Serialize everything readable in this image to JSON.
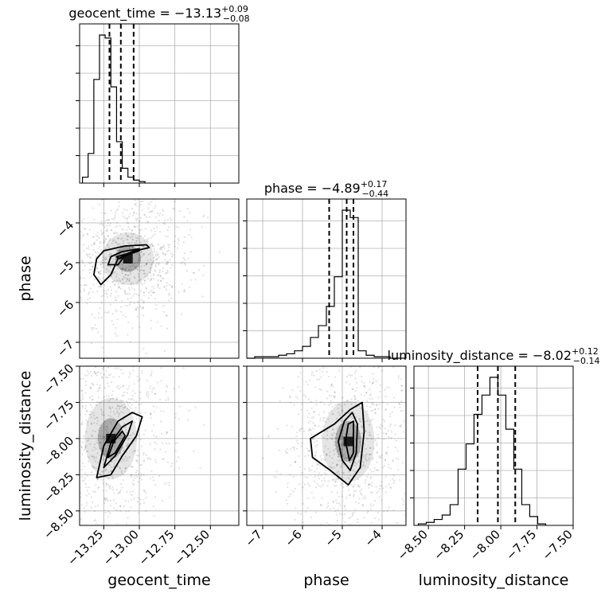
{
  "chart_data": {
    "type": "corner",
    "grid": true,
    "parameters": [
      {
        "name": "geocent_time",
        "median": -13.13,
        "plus": 0.09,
        "minus": 0.08,
        "range": [
          -13.42,
          -12.3
        ],
        "ticks": [
          -13.25,
          -13.0,
          -12.75,
          -12.5
        ],
        "tick_labels": [
          "−13.25",
          "−13.00",
          "−12.75",
          "−12.50"
        ],
        "title_prefix": "geocent_time = −13.13",
        "title_sup": "+0.09",
        "title_sub": "−0.08",
        "hist": {
          "edges_start": -13.4,
          "bin_width": 0.04,
          "counts": [
            0.04,
            0.2,
            0.7,
            1.0,
            0.98,
            0.65,
            0.28,
            0.1,
            0.04,
            0.02,
            0.01
          ]
        }
      },
      {
        "name": "phase",
        "median": -4.89,
        "plus": 0.17,
        "minus": 0.44,
        "range": [
          -7.4,
          -3.4
        ],
        "ticks": [
          -7,
          -6,
          -5,
          -4
        ],
        "tick_labels": [
          "−7",
          "−6",
          "−5",
          "−4"
        ],
        "title_prefix": "phase = −4.89",
        "title_sup": "+0.17",
        "title_sub": "−0.44",
        "hist": {
          "edges_start": -7.4,
          "bin_width": 0.2,
          "counts": [
            0.0,
            0.01,
            0.01,
            0.01,
            0.02,
            0.03,
            0.05,
            0.08,
            0.14,
            0.22,
            0.35,
            0.55,
            1.0,
            0.95,
            0.05,
            0.02,
            0.01,
            0.01,
            0.0,
            0.0
          ]
        }
      },
      {
        "name": "luminosity_distance",
        "median": -8.02,
        "plus": 0.12,
        "minus": 0.14,
        "range": [
          -8.6,
          -7.5
        ],
        "ticks": [
          -8.5,
          -8.25,
          -8.0,
          -7.75,
          -7.5
        ],
        "tick_labels": [
          "−8.50",
          "−8.25",
          "−8.00",
          "−7.75",
          "−7.50"
        ],
        "title_prefix": "luminosity_distance = −8.02",
        "title_sup": "+0.12",
        "title_sub": "−0.14",
        "hist": {
          "edges_start": -8.57,
          "bin_width": 0.055,
          "counts": [
            0.01,
            0.02,
            0.04,
            0.07,
            0.14,
            0.38,
            0.55,
            0.75,
            0.88,
            1.0,
            0.88,
            0.65,
            0.38,
            0.14,
            0.06,
            0.01
          ]
        }
      }
    ],
    "pairs": [
      {
        "x": "geocent_time",
        "y": "phase",
        "peak": [
          -13.08,
          -4.9
        ],
        "contours": [
          [
            [
              -13.3,
              -4.9
            ],
            [
              -13.25,
              -4.7
            ],
            [
              -13.1,
              -4.58
            ],
            [
              -12.95,
              -4.55
            ],
            [
              -12.93,
              -4.62
            ],
            [
              -13.05,
              -4.72
            ],
            [
              -13.15,
              -4.9
            ],
            [
              -13.2,
              -5.3
            ],
            [
              -13.27,
              -5.55
            ],
            [
              -13.32,
              -5.3
            ]
          ],
          [
            [
              -13.2,
              -4.85
            ],
            [
              -13.12,
              -4.72
            ],
            [
              -13.0,
              -4.65
            ],
            [
              -13.0,
              -4.7
            ],
            [
              -13.1,
              -4.82
            ],
            [
              -13.15,
              -5.05
            ],
            [
              -13.22,
              -5.05
            ]
          ],
          [
            [
              -13.16,
              -4.85
            ],
            [
              -13.09,
              -4.78
            ],
            [
              -13.04,
              -4.72
            ],
            [
              -13.08,
              -4.8
            ],
            [
              -13.14,
              -4.9
            ]
          ]
        ]
      },
      {
        "x": "geocent_time",
        "y": "luminosity_distance",
        "peak": [
          -13.2,
          -8.0
        ],
        "contours": [
          [
            [
              -13.3,
              -8.27
            ],
            [
              -13.25,
              -8.05
            ],
            [
              -13.15,
              -7.88
            ],
            [
              -13.05,
              -7.82
            ],
            [
              -12.98,
              -7.85
            ],
            [
              -13.02,
              -7.98
            ],
            [
              -13.12,
              -8.12
            ],
            [
              -13.2,
              -8.25
            ]
          ],
          [
            [
              -13.25,
              -8.2
            ],
            [
              -13.2,
              -8.03
            ],
            [
              -13.12,
              -7.92
            ],
            [
              -13.05,
              -7.88
            ],
            [
              -13.08,
              -7.97
            ],
            [
              -13.17,
              -8.12
            ]
          ],
          [
            [
              -13.22,
              -8.13
            ],
            [
              -13.18,
              -8.02
            ],
            [
              -13.12,
              -7.95
            ],
            [
              -13.1,
              -7.98
            ],
            [
              -13.17,
              -8.1
            ]
          ]
        ]
      },
      {
        "x": "phase",
        "y": "luminosity_distance",
        "peak": [
          -4.85,
          -8.02
        ],
        "contours": [
          [
            [
              -5.8,
              -8.0
            ],
            [
              -5.2,
              -7.9
            ],
            [
              -4.8,
              -7.8
            ],
            [
              -4.5,
              -7.75
            ],
            [
              -4.45,
              -7.95
            ],
            [
              -4.55,
              -8.2
            ],
            [
              -4.85,
              -8.32
            ],
            [
              -5.3,
              -8.22
            ],
            [
              -5.75,
              -8.13
            ]
          ],
          [
            [
              -5.1,
              -8.02
            ],
            [
              -4.95,
              -7.88
            ],
            [
              -4.75,
              -7.82
            ],
            [
              -4.62,
              -7.9
            ],
            [
              -4.65,
              -8.1
            ],
            [
              -4.8,
              -8.22
            ],
            [
              -5.0,
              -8.15
            ]
          ],
          [
            [
              -4.92,
              -8.02
            ],
            [
              -4.85,
              -7.9
            ],
            [
              -4.72,
              -7.88
            ],
            [
              -4.72,
              -8.1
            ],
            [
              -4.82,
              -8.15
            ]
          ]
        ]
      }
    ]
  }
}
